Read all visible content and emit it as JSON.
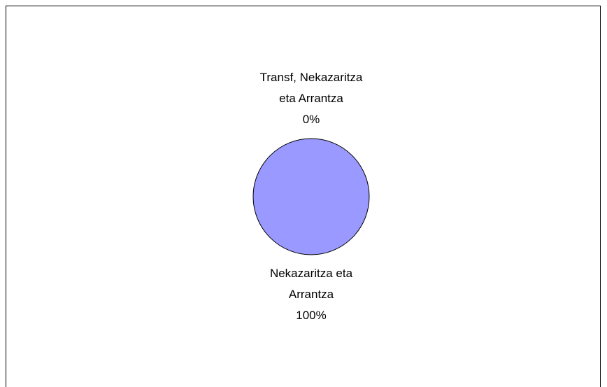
{
  "chart_data": {
    "type": "pie",
    "categories": [
      "Transf, Nekazaritza eta Arrantza",
      "Nekazaritza eta Arrantza"
    ],
    "values": [
      0,
      100
    ],
    "value_labels": [
      "0%",
      "100%"
    ],
    "colors": [
      "#9999ff",
      "#9999ff"
    ]
  }
}
